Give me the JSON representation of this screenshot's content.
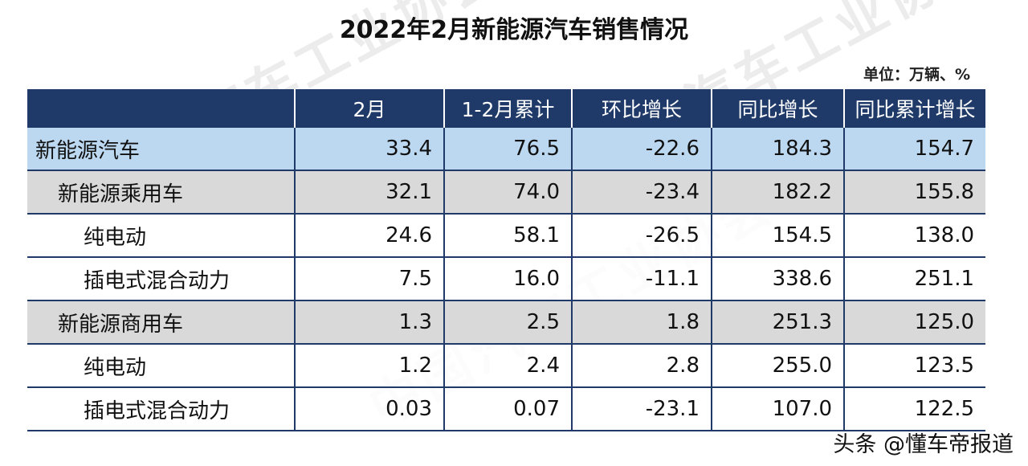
{
  "title": "2022年2月新能源汽车销售情况",
  "unit": "单位：万辆、%",
  "footer": "头条 @懂车帝报道",
  "watermark": "中国汽车工业协会",
  "colors": {
    "header_bg": "#1f3a68",
    "highlight_row": "#bcd8f1",
    "sub_row": "#d9d9d9",
    "grid": "#1f3a68"
  },
  "chart_data": {
    "type": "table",
    "title": "2022年2月新能源汽车销售情况",
    "columns": [
      "",
      "2月",
      "1-2月累计",
      "环比增长",
      "同比增长",
      "同比累计增长"
    ],
    "rows": [
      {
        "level": 0,
        "label": "新能源汽车",
        "values": [
          "33.4",
          "76.5",
          "-22.6",
          "184.3",
          "154.7"
        ]
      },
      {
        "level": 1,
        "label": "新能源乘用车",
        "values": [
          "32.1",
          "74.0",
          "-23.4",
          "182.2",
          "155.8"
        ]
      },
      {
        "level": 2,
        "label": "纯电动",
        "values": [
          "24.6",
          "58.1",
          "-26.5",
          "154.5",
          "138.0"
        ]
      },
      {
        "level": 2,
        "label": "插电式混合动力",
        "values": [
          "7.5",
          "16.0",
          "-11.1",
          "338.6",
          "251.1"
        ]
      },
      {
        "level": 1,
        "label": "新能源商用车",
        "values": [
          "1.3",
          "2.5",
          "1.8",
          "251.3",
          "125.0"
        ]
      },
      {
        "level": 2,
        "label": "纯电动",
        "values": [
          "1.2",
          "2.4",
          "2.8",
          "255.0",
          "123.5"
        ]
      },
      {
        "level": 2,
        "label": "插电式混合动力",
        "values": [
          "0.03",
          "0.07",
          "-23.1",
          "107.0",
          "122.5"
        ]
      }
    ]
  }
}
